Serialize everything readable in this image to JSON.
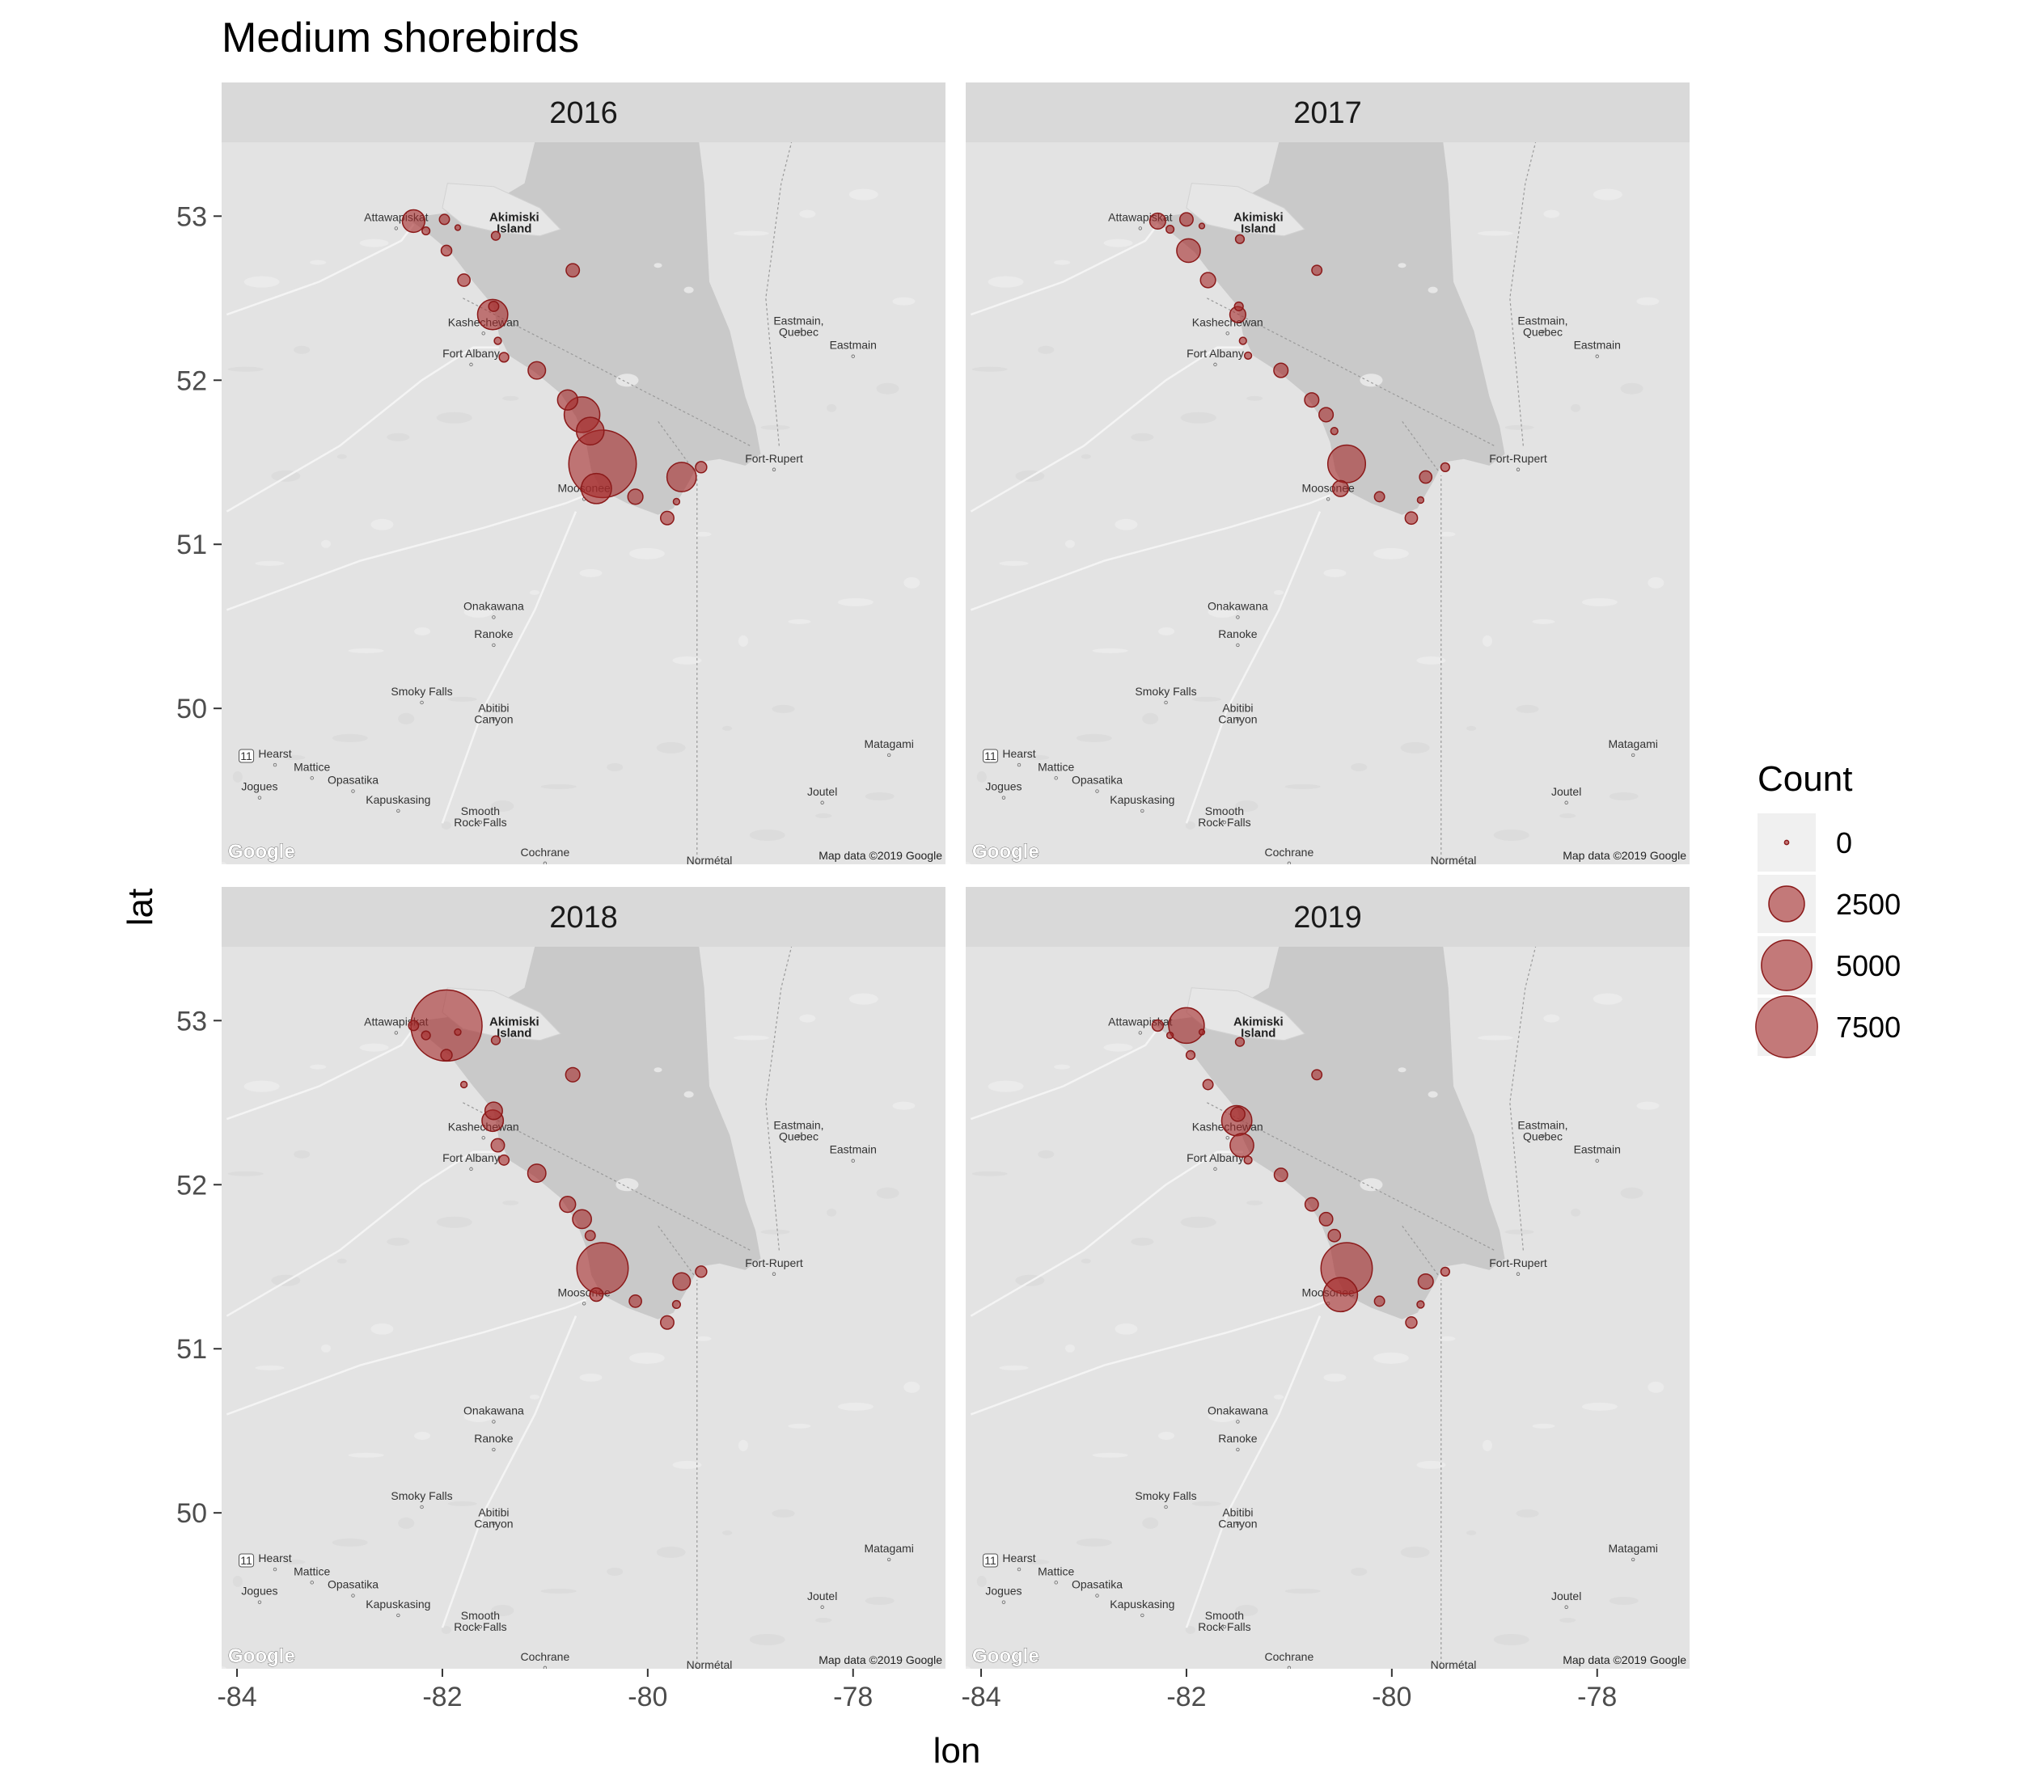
{
  "title": "Medium shorebirds",
  "xlabel": "lon",
  "ylabel": "lat",
  "x_ticks": [
    -84,
    -82,
    -80,
    -78
  ],
  "x_tick_labels": [
    "-84",
    "-82",
    "-80",
    "-78"
  ],
  "y_ticks": [
    50,
    51,
    52,
    53
  ],
  "y_tick_labels": [
    "50",
    "51",
    "52",
    "53"
  ],
  "xlim": [
    -84.15,
    -77.1
  ],
  "ylim": [
    49.05,
    53.45
  ],
  "colors": {
    "point_fill": "#a52a2a",
    "point_stroke": "#8b1a1a",
    "panel_strip": "#d9d9d9",
    "water": "#c9c9c9",
    "land": "#e3e3e3"
  },
  "legend": {
    "title": "Count",
    "entries": [
      {
        "value": 0,
        "label": "0"
      },
      {
        "value": 2500,
        "label": "2500"
      },
      {
        "value": 5000,
        "label": "5000"
      },
      {
        "value": 7500,
        "label": "7500"
      }
    ]
  },
  "map_labels": {
    "places": [
      {
        "name": "Akimiski\nIsland",
        "lon": -81.3,
        "lat": 52.97,
        "bold": true
      },
      {
        "name": "Attawapiskat",
        "lon": -82.45,
        "lat": 52.97
      },
      {
        "name": "Kashechewan",
        "lon": -81.6,
        "lat": 52.33
      },
      {
        "name": "Fort Albany",
        "lon": -81.72,
        "lat": 52.14
      },
      {
        "name": "Eastmain,\nQuebec",
        "lon": -78.53,
        "lat": 52.34
      },
      {
        "name": "Eastmain",
        "lon": -78.0,
        "lat": 52.19
      },
      {
        "name": "Fort-Rupert",
        "lon": -78.77,
        "lat": 51.5
      },
      {
        "name": "Moosonee",
        "lon": -80.62,
        "lat": 51.32
      },
      {
        "name": "Onakawana",
        "lon": -81.5,
        "lat": 50.6
      },
      {
        "name": "Ranoke",
        "lon": -81.5,
        "lat": 50.43
      },
      {
        "name": "Smoky Falls",
        "lon": -82.2,
        "lat": 50.08
      },
      {
        "name": "Abitibi\nCanyon",
        "lon": -81.5,
        "lat": 49.98
      },
      {
        "name": "Matagami",
        "lon": -77.65,
        "lat": 49.76
      },
      {
        "name": "Hearst",
        "lon": -83.63,
        "lat": 49.7
      },
      {
        "name": "Mattice",
        "lon": -83.27,
        "lat": 49.62
      },
      {
        "name": "Opasatika",
        "lon": -82.87,
        "lat": 49.54
      },
      {
        "name": "Jogues",
        "lon": -83.78,
        "lat": 49.5
      },
      {
        "name": "Joutel",
        "lon": -78.3,
        "lat": 49.47
      },
      {
        "name": "Kapuskasing",
        "lon": -82.43,
        "lat": 49.42
      },
      {
        "name": "Smooth\nRock Falls",
        "lon": -81.63,
        "lat": 49.35
      },
      {
        "name": "Cochrane",
        "lon": -81.0,
        "lat": 49.1
      },
      {
        "name": "Normétal",
        "lon": -79.4,
        "lat": 49.05
      }
    ],
    "attribution": "Map data ©2019 Google",
    "logo": "Google"
  },
  "chart_data": [
    {
      "type": "scatter",
      "panel": "2016",
      "points": [
        {
          "lon": -82.28,
          "lat": 52.97,
          "count": 1000
        },
        {
          "lon": -82.16,
          "lat": 52.91,
          "count": 120
        },
        {
          "lon": -81.98,
          "lat": 52.98,
          "count": 200
        },
        {
          "lon": -81.85,
          "lat": 52.93,
          "count": 60
        },
        {
          "lon": -81.48,
          "lat": 52.88,
          "count": 150
        },
        {
          "lon": -81.96,
          "lat": 52.79,
          "count": 220
        },
        {
          "lon": -80.73,
          "lat": 52.67,
          "count": 350
        },
        {
          "lon": -81.79,
          "lat": 52.61,
          "count": 300
        },
        {
          "lon": -81.5,
          "lat": 52.45,
          "count": 200
        },
        {
          "lon": -81.51,
          "lat": 52.4,
          "count": 1800
        },
        {
          "lon": -81.46,
          "lat": 52.24,
          "count": 100
        },
        {
          "lon": -81.4,
          "lat": 52.14,
          "count": 180
        },
        {
          "lon": -81.08,
          "lat": 52.06,
          "count": 600
        },
        {
          "lon": -80.78,
          "lat": 51.88,
          "count": 800
        },
        {
          "lon": -80.64,
          "lat": 51.79,
          "count": 2500
        },
        {
          "lon": -80.56,
          "lat": 51.69,
          "count": 1500
        },
        {
          "lon": -80.44,
          "lat": 51.49,
          "count": 9000
        },
        {
          "lon": -80.5,
          "lat": 51.34,
          "count": 1800
        },
        {
          "lon": -80.12,
          "lat": 51.29,
          "count": 450
        },
        {
          "lon": -79.81,
          "lat": 51.16,
          "count": 350
        },
        {
          "lon": -79.72,
          "lat": 51.26,
          "count": 80
        },
        {
          "lon": -79.67,
          "lat": 51.41,
          "count": 1700
        },
        {
          "lon": -79.48,
          "lat": 51.47,
          "count": 250
        }
      ]
    },
    {
      "type": "scatter",
      "panel": "2017",
      "points": [
        {
          "lon": -82.28,
          "lat": 52.97,
          "count": 500
        },
        {
          "lon": -82.16,
          "lat": 52.92,
          "count": 120
        },
        {
          "lon": -82.0,
          "lat": 52.98,
          "count": 350
        },
        {
          "lon": -81.85,
          "lat": 52.94,
          "count": 60
        },
        {
          "lon": -81.48,
          "lat": 52.86,
          "count": 150
        },
        {
          "lon": -81.98,
          "lat": 52.79,
          "count": 1100
        },
        {
          "lon": -80.73,
          "lat": 52.67,
          "count": 200
        },
        {
          "lon": -81.79,
          "lat": 52.61,
          "count": 450
        },
        {
          "lon": -81.49,
          "lat": 52.45,
          "count": 150
        },
        {
          "lon": -81.5,
          "lat": 52.4,
          "count": 500
        },
        {
          "lon": -81.45,
          "lat": 52.24,
          "count": 100
        },
        {
          "lon": -81.4,
          "lat": 52.15,
          "count": 100
        },
        {
          "lon": -81.08,
          "lat": 52.06,
          "count": 400
        },
        {
          "lon": -80.78,
          "lat": 51.88,
          "count": 400
        },
        {
          "lon": -80.64,
          "lat": 51.79,
          "count": 400
        },
        {
          "lon": -80.56,
          "lat": 51.69,
          "count": 100
        },
        {
          "lon": -80.44,
          "lat": 51.49,
          "count": 2800
        },
        {
          "lon": -80.5,
          "lat": 51.34,
          "count": 500
        },
        {
          "lon": -80.12,
          "lat": 51.29,
          "count": 200
        },
        {
          "lon": -79.81,
          "lat": 51.16,
          "count": 300
        },
        {
          "lon": -79.72,
          "lat": 51.27,
          "count": 80
        },
        {
          "lon": -79.67,
          "lat": 51.41,
          "count": 300
        },
        {
          "lon": -79.48,
          "lat": 51.47,
          "count": 150
        }
      ]
    },
    {
      "type": "scatter",
      "panel": "2018",
      "points": [
        {
          "lon": -82.28,
          "lat": 52.97,
          "count": 200
        },
        {
          "lon": -82.16,
          "lat": 52.91,
          "count": 150
        },
        {
          "lon": -81.96,
          "lat": 52.97,
          "count": 10000
        },
        {
          "lon": -81.85,
          "lat": 52.93,
          "count": 80
        },
        {
          "lon": -81.48,
          "lat": 52.88,
          "count": 150
        },
        {
          "lon": -81.96,
          "lat": 52.79,
          "count": 250
        },
        {
          "lon": -80.73,
          "lat": 52.67,
          "count": 400
        },
        {
          "lon": -81.79,
          "lat": 52.61,
          "count": 80
        },
        {
          "lon": -81.5,
          "lat": 52.45,
          "count": 600
        },
        {
          "lon": -81.51,
          "lat": 52.39,
          "count": 900
        },
        {
          "lon": -81.46,
          "lat": 52.24,
          "count": 350
        },
        {
          "lon": -81.4,
          "lat": 52.15,
          "count": 200
        },
        {
          "lon": -81.08,
          "lat": 52.07,
          "count": 650
        },
        {
          "lon": -80.78,
          "lat": 51.88,
          "count": 500
        },
        {
          "lon": -80.64,
          "lat": 51.79,
          "count": 700
        },
        {
          "lon": -80.56,
          "lat": 51.69,
          "count": 200
        },
        {
          "lon": -80.44,
          "lat": 51.49,
          "count": 5200
        },
        {
          "lon": -80.5,
          "lat": 51.33,
          "count": 350
        },
        {
          "lon": -80.12,
          "lat": 51.29,
          "count": 300
        },
        {
          "lon": -79.81,
          "lat": 51.16,
          "count": 350
        },
        {
          "lon": -79.72,
          "lat": 51.27,
          "count": 120
        },
        {
          "lon": -79.67,
          "lat": 51.41,
          "count": 600
        },
        {
          "lon": -79.48,
          "lat": 51.47,
          "count": 250
        }
      ]
    },
    {
      "type": "scatter",
      "panel": "2019",
      "points": [
        {
          "lon": -82.28,
          "lat": 52.97,
          "count": 250
        },
        {
          "lon": -82.16,
          "lat": 52.91,
          "count": 80
        },
        {
          "lon": -82.0,
          "lat": 52.97,
          "count": 2500
        },
        {
          "lon": -81.85,
          "lat": 52.93,
          "count": 60
        },
        {
          "lon": -81.48,
          "lat": 52.87,
          "count": 150
        },
        {
          "lon": -81.96,
          "lat": 52.79,
          "count": 150
        },
        {
          "lon": -80.73,
          "lat": 52.67,
          "count": 200
        },
        {
          "lon": -81.79,
          "lat": 52.61,
          "count": 200
        },
        {
          "lon": -81.5,
          "lat": 52.43,
          "count": 400
        },
        {
          "lon": -81.51,
          "lat": 52.39,
          "count": 1800
        },
        {
          "lon": -81.46,
          "lat": 52.24,
          "count": 1100
        },
        {
          "lon": -81.4,
          "lat": 52.15,
          "count": 120
        },
        {
          "lon": -81.08,
          "lat": 52.06,
          "count": 350
        },
        {
          "lon": -80.78,
          "lat": 51.88,
          "count": 350
        },
        {
          "lon": -80.64,
          "lat": 51.79,
          "count": 350
        },
        {
          "lon": -80.56,
          "lat": 51.69,
          "count": 300
        },
        {
          "lon": -80.44,
          "lat": 51.49,
          "count": 5200
        },
        {
          "lon": -80.5,
          "lat": 51.33,
          "count": 2300
        },
        {
          "lon": -80.12,
          "lat": 51.29,
          "count": 200
        },
        {
          "lon": -79.81,
          "lat": 51.16,
          "count": 250
        },
        {
          "lon": -79.72,
          "lat": 51.27,
          "count": 100
        },
        {
          "lon": -79.67,
          "lat": 51.41,
          "count": 450
        },
        {
          "lon": -79.48,
          "lat": 51.47,
          "count": 150
        }
      ]
    }
  ]
}
